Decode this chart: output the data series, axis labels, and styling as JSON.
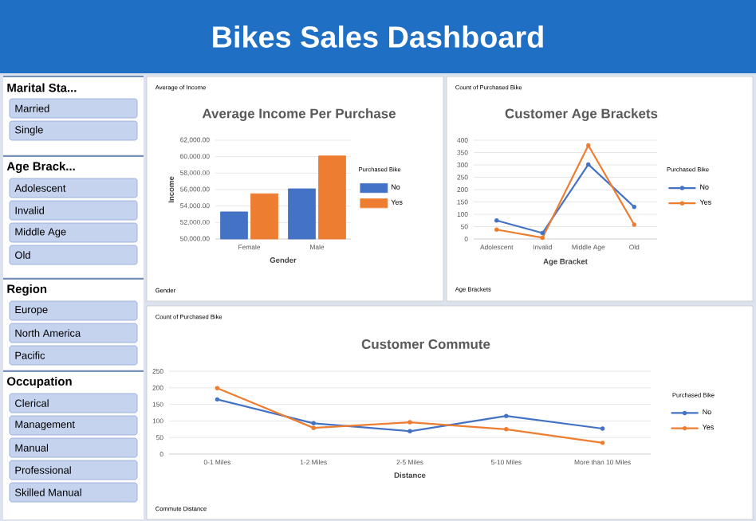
{
  "chart_data": [
    {
      "type": "other",
      "title": "Bikes Sales Dashboard"
    },
    {
      "type": "other",
      "title": "Marital Sta...",
      "annotations": [
        "Married",
        "Single"
      ]
    },
    {
      "type": "other",
      "title": "Age Brack...",
      "annotations": [
        "Adolescent",
        "Invalid",
        "Middle Age",
        "Old"
      ]
    },
    {
      "type": "other",
      "title": "Region",
      "annotations": [
        "Europe",
        "North America",
        "Pacific"
      ]
    },
    {
      "type": "other",
      "title": "Occupation",
      "annotations": [
        "Clerical",
        "Management",
        "Manual",
        "Professional",
        "Skilled Manual"
      ]
    },
    {
      "type": "bar",
      "title": "Average Income Per Purchase",
      "xlabel": "Gender",
      "ylabel": "Income",
      "legend_title": "Purchased Bike",
      "annotations": [
        "Average of Income",
        "Gender"
      ],
      "categories": [
        "Female",
        "Male"
      ],
      "series": [
        {
          "name": "No",
          "color": "#4472c4",
          "values": [
            53300,
            56100
          ]
        },
        {
          "name": "Yes",
          "color": "#ed7d31",
          "values": [
            55500,
            60100
          ]
        }
      ],
      "ylim": [
        50000,
        62000
      ],
      "yticks": [
        {
          "value": 50000,
          "label": "50,000.00"
        },
        {
          "value": 52000,
          "label": "52,000.00"
        },
        {
          "value": 54000,
          "label": "54,000.00"
        },
        {
          "value": 56000,
          "label": "56,000.00"
        },
        {
          "value": 58000,
          "label": "58,000.00"
        },
        {
          "value": 60000,
          "label": "60,000.00"
        },
        {
          "value": 62000,
          "label": "62,000.00"
        }
      ],
      "grid": "y",
      "legend": "right"
    },
    {
      "type": "line",
      "title": "Customer Age Brackets",
      "xlabel": "Age Bracket",
      "legend_title": "Purchased Bike",
      "annotations": [
        "Count of Purchased Bike",
        "Age Brackets"
      ],
      "categories": [
        "Adolescent",
        "Invalid",
        "Middle Age",
        "Old"
      ],
      "series": [
        {
          "name": "No",
          "color": "#4472c4",
          "values": [
            75,
            24,
            302,
            130
          ]
        },
        {
          "name": "Yes",
          "color": "#ed7d31",
          "values": [
            38,
            5,
            379,
            58
          ]
        }
      ],
      "ylim": [
        0,
        400
      ],
      "yticks": [
        0,
        50,
        100,
        150,
        200,
        250,
        300,
        350,
        400
      ],
      "grid": "y",
      "legend": "right",
      "marker": "circle"
    },
    {
      "type": "line",
      "title": "Customer Commute",
      "xlabel": "Distance",
      "legend_title": "Purchased Bike",
      "annotations": [
        "Count of Purchased Bike",
        "Commute Distance"
      ],
      "categories": [
        "0-1 Miles",
        "1-2 Miles",
        "2-5 Miles",
        "5-10 Miles",
        "More than 10 Miles"
      ],
      "series": [
        {
          "name": "No",
          "color": "#4472c4",
          "values": [
            165,
            93,
            69,
            115,
            77
          ]
        },
        {
          "name": "Yes",
          "color": "#ed7d31",
          "values": [
            199,
            79,
            96,
            75,
            34
          ]
        }
      ],
      "ylim": [
        0,
        250
      ],
      "yticks": [
        0,
        50,
        100,
        150,
        200,
        250
      ],
      "grid": "y",
      "legend": "right",
      "marker": "circle"
    }
  ]
}
